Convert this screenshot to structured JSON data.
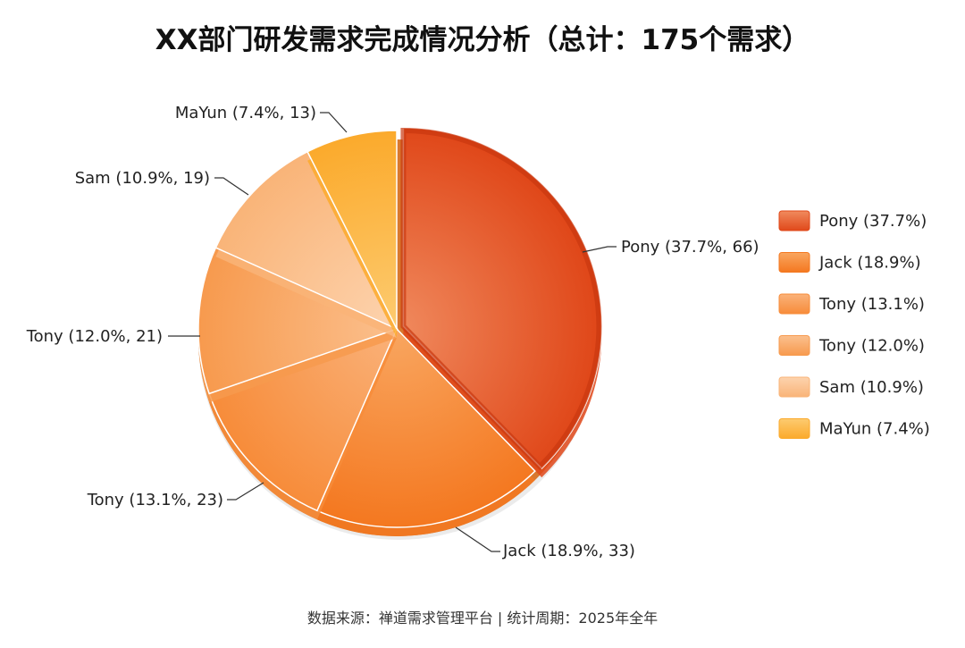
{
  "chart_data": {
    "type": "pie",
    "title": "XX部门研发需求完成情况分析（总计：175个需求）",
    "total": 175,
    "slices": [
      {
        "label": "Pony",
        "callout": "Pony (37.7%, 66)",
        "legend": "Pony (37.7%)",
        "value": 66,
        "percent": 37.7,
        "color": "#E0481A",
        "highlight": "#F08A5E"
      },
      {
        "label": "Jack",
        "callout": "Jack (18.9%, 33)",
        "legend": "Jack (18.9%)",
        "value": 33,
        "percent": 18.9,
        "color": "#F47820",
        "highlight": "#F9A660"
      },
      {
        "label": "Tony",
        "callout": "Tony (13.1%, 23)",
        "legend": "Tony (13.1%)",
        "value": 23,
        "percent": 13.1,
        "color": "#F78C3A",
        "highlight": "#FAB27A"
      },
      {
        "label": "Tony",
        "callout": "Tony (12.0%, 21)",
        "legend": "Tony (12.0%)",
        "value": 21,
        "percent": 12.0,
        "color": "#F79A4E",
        "highlight": "#FBC08E"
      },
      {
        "label": "Sam",
        "callout": "Sam (10.9%, 19)",
        "legend": "Sam (10.9%)",
        "value": 19,
        "percent": 10.9,
        "color": "#F9B478",
        "highlight": "#FDD3AE"
      },
      {
        "label": "MaYun",
        "callout": "MaYun (7.4%, 13)",
        "legend": "MaYun (7.4%)",
        "value": 13,
        "percent": 7.4,
        "color": "#FBAA2C",
        "highlight": "#FDCB70"
      }
    ],
    "legend_position": "right",
    "exploded": "Pony"
  },
  "footer": "数据来源：禅道需求管理平台 | 统计周期：2025年全年"
}
